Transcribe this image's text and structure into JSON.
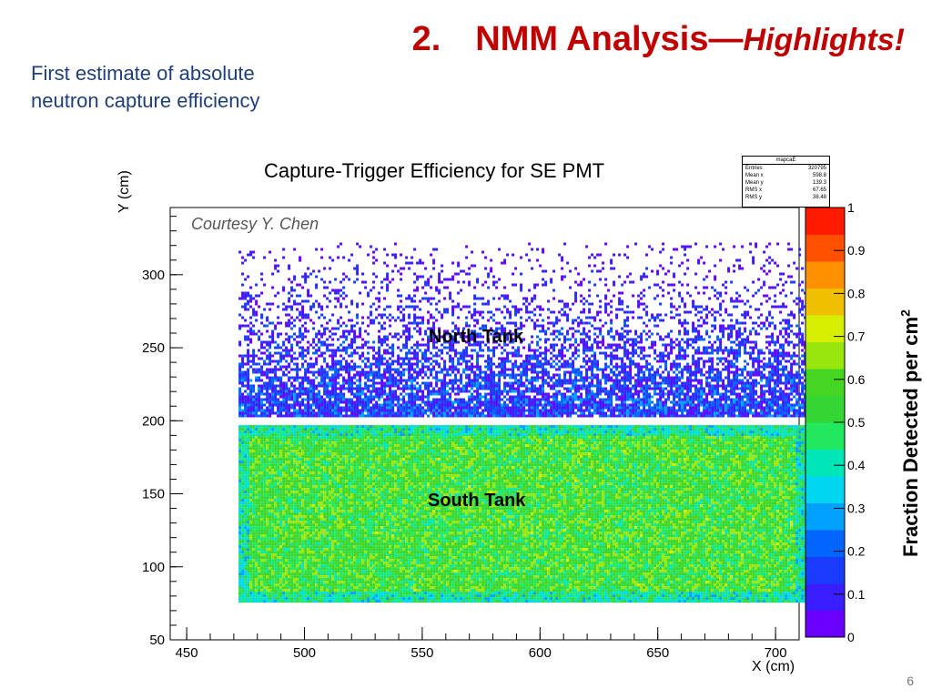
{
  "slide": {
    "title_number": "2.",
    "title_main": "NMM Analysis—",
    "title_highlight": "Highlights!",
    "subtitle": "First estimate of absolute neutron capture efficiency",
    "page_number": "6",
    "courtesy": "Courtesy Y. Chen"
  },
  "stats_box": {
    "name": "mapcaE",
    "rows": [
      {
        "label": "Entries",
        "value": "320795"
      },
      {
        "label": "Mean x",
        "value": "598.8"
      },
      {
        "label": "Mean y",
        "value": "139.3"
      },
      {
        "label": "RMS x",
        "value": "67.65"
      },
      {
        "label": "RMS y",
        "value": "38.48"
      }
    ]
  },
  "chart_data": {
    "type": "heatmap",
    "title": "Capture-Trigger Efficiency for SE PMT",
    "xlabel": "X (cm)",
    "ylabel": "Y (cm)",
    "zlabel": "Fraction Detected per cm²",
    "xlim": [
      443,
      710
    ],
    "ylim": [
      50,
      346
    ],
    "zlim": [
      0,
      1
    ],
    "xticks": [
      450,
      500,
      550,
      600,
      650,
      700
    ],
    "yticks": [
      50,
      100,
      150,
      200,
      250,
      300
    ],
    "zticks": [
      0,
      0.1,
      0.2,
      0.3,
      0.4,
      0.5,
      0.6,
      0.7,
      0.8,
      0.9,
      1
    ],
    "colorscale": [
      "#6a00ff",
      "#3a1eff",
      "#1a3cff",
      "#0066ff",
      "#00a0ff",
      "#00d6f0",
      "#00e6b8",
      "#22e860",
      "#33d633",
      "#44d622",
      "#99e60f",
      "#d6ef00",
      "#f0c000",
      "#ff9000",
      "#ff5000",
      "#ff1a00"
    ],
    "regions": [
      {
        "name": "North Tank",
        "x_range": [
          472,
          712
        ],
        "y_range": [
          203,
          322
        ],
        "typical_value": 0.1
      },
      {
        "name": "South Tank",
        "x_range": [
          472,
          712
        ],
        "y_range": [
          77,
          197
        ],
        "typical_value": 0.55
      }
    ]
  }
}
